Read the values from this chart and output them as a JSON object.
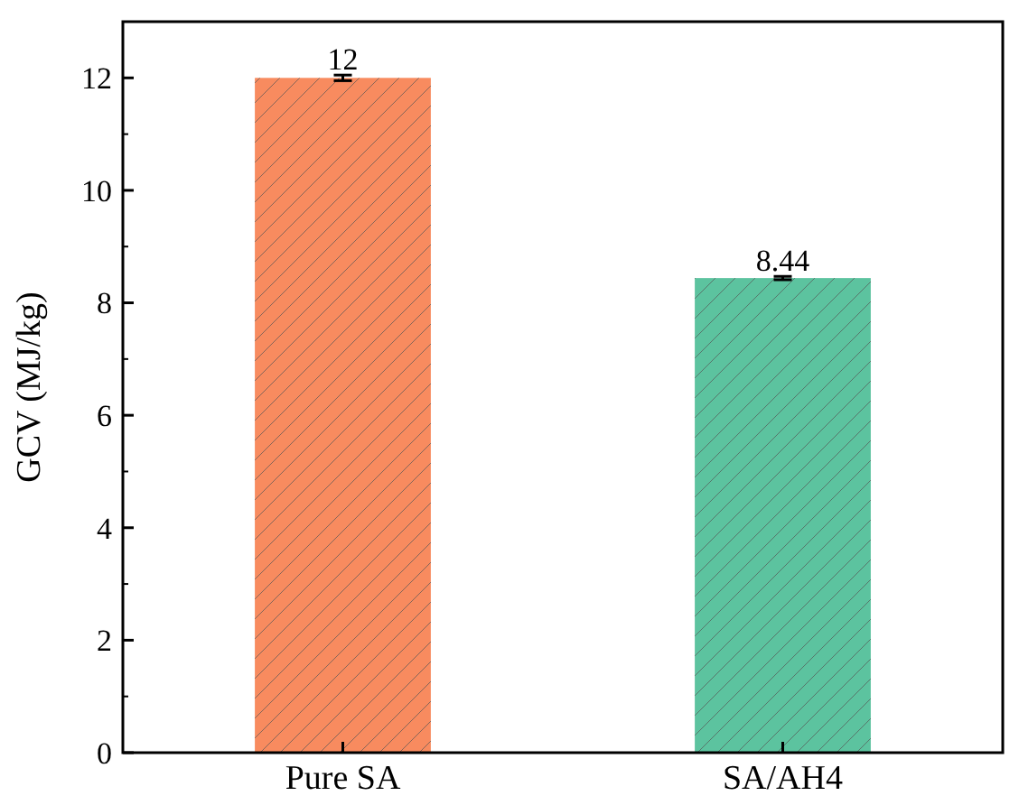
{
  "chart_data": {
    "type": "bar",
    "ylabel": "GCV (MJ/kg)",
    "categories": [
      "Pure SA",
      "SA/AH4"
    ],
    "values": [
      12,
      8.44
    ],
    "colors": [
      "#f88b5f",
      "#5cc39f"
    ],
    "errors": [
      0.05,
      0.03
    ],
    "data_labels": true,
    "ylim": [
      0,
      13
    ],
    "yticks": [
      0,
      2,
      4,
      6,
      8,
      10,
      12
    ],
    "grid": false
  }
}
